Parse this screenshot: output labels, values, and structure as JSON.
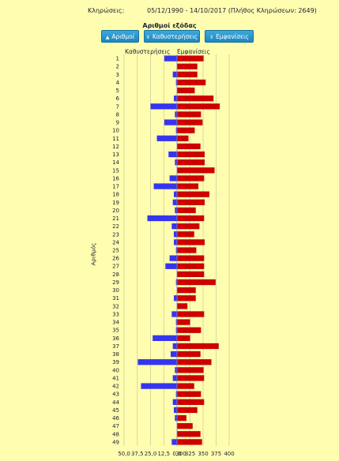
{
  "header": {
    "label": "Κληρώσεις:",
    "value": "05/12/1990 - 14/10/2017  (Πλήθος Κληρώσεων: 2649)"
  },
  "axis_title": "Αριθμοί εξόδας",
  "buttons": [
    {
      "label": "Αριθμοί",
      "icon": "up-arrow-icon"
    },
    {
      "label": "Καθυστερήσεις",
      "icon": "updown-arrow-icon"
    },
    {
      "label": "Εμφανίσεις",
      "icon": "updown-arrow-icon"
    }
  ],
  "column_headers": {
    "left": "Καθυστερήσεις",
    "right": "Εμφανίσεις"
  },
  "y_axis_label": "Αριθμός",
  "colors": {
    "delay": "#3535f0",
    "appearance": "#cc0000",
    "background": "#fffeb0",
    "button": "#2596d0"
  },
  "chart_data": {
    "type": "bar",
    "categories": [
      "1",
      "2",
      "3",
      "4",
      "5",
      "6",
      "7",
      "8",
      "9",
      "10",
      "11",
      "12",
      "13",
      "14",
      "15",
      "16",
      "17",
      "18",
      "19",
      "20",
      "21",
      "22",
      "23",
      "24",
      "25",
      "26",
      "27",
      "28",
      "29",
      "30",
      "31",
      "32",
      "33",
      "34",
      "35",
      "36",
      "37",
      "38",
      "39",
      "40",
      "41",
      "42",
      "43",
      "44",
      "45",
      "46",
      "47",
      "48",
      "49"
    ],
    "series": [
      {
        "name": "Καθυστερήσεις",
        "axis": "left",
        "values": [
          12,
          0,
          4,
          1,
          0,
          3,
          25,
          2,
          12,
          1,
          19,
          0,
          8,
          2,
          0,
          7,
          22,
          3,
          4,
          2,
          28,
          5,
          3,
          3,
          1,
          7,
          11,
          0,
          1,
          0,
          3,
          0,
          5,
          1,
          1,
          23,
          4,
          6,
          37,
          2,
          4,
          34,
          1,
          4,
          3,
          2,
          0,
          0,
          5
        ]
      },
      {
        "name": "Εμφανίσεις",
        "axis": "right",
        "values": [
          351,
          339,
          339,
          355,
          334,
          370,
          382,
          346,
          349,
          334,
          322,
          345,
          353,
          353,
          372,
          352,
          341,
          362,
          353,
          336,
          352,
          343,
          333,
          353,
          337,
          352,
          352,
          352,
          374,
          336,
          336,
          320,
          352,
          325,
          346,
          325,
          380,
          345,
          366,
          351,
          352,
          333,
          346,
          352,
          339,
          318,
          330,
          345,
          348
        ]
      }
    ],
    "left_axis": {
      "ticks": [
        "50,0",
        "37,5",
        "25,0",
        "12,5",
        "0,0"
      ],
      "range": [
        0,
        50
      ],
      "reversed": true
    },
    "right_axis": {
      "ticks": [
        "300",
        "325",
        "350",
        "375",
        "400"
      ],
      "range": [
        300,
        400
      ]
    },
    "grid": true
  }
}
